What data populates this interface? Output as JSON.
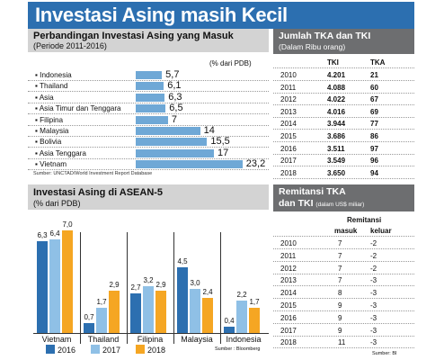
{
  "title": "Investasi Asing masih Kecil",
  "fdi_comparison": {
    "title": "Perbandingan Investasi Asing yang Masuk",
    "subtitle": "(Periode 2011-2016)",
    "unit_note": "(% dari PDB)",
    "source": "Sumber: UNCTAD/World Investment Report Database",
    "rows": [
      {
        "name": "Indonesia",
        "value": 5.7,
        "label": "5,7"
      },
      {
        "name": "Thailand",
        "value": 6.1,
        "label": "6,1"
      },
      {
        "name": "Asia",
        "value": 6.3,
        "label": "6,3"
      },
      {
        "name": "Asia Timur dan Tenggara",
        "value": 6.5,
        "label": "6,5"
      },
      {
        "name": "Filipina",
        "value": 7,
        "label": "7"
      },
      {
        "name": "Malaysia",
        "value": 14,
        "label": "14"
      },
      {
        "name": "Bolivia",
        "value": 15.5,
        "label": "15,5"
      },
      {
        "name": "Asia Tenggara",
        "value": 17,
        "label": "17"
      },
      {
        "name": "Vietnam",
        "value": 23.2,
        "label": "23,2"
      }
    ],
    "bar_color": "#6fa8d6"
  },
  "tka_table": {
    "title": "Jumlah TKA dan TKI",
    "subtitle": "(Dalam Ribu orang)",
    "headers": [
      "",
      "TKI",
      "TKA"
    ],
    "rows": [
      [
        "2010",
        "4.201",
        "21"
      ],
      [
        "2011",
        "4.088",
        "60"
      ],
      [
        "2012",
        "4.022",
        "67"
      ],
      [
        "2013",
        "4.016",
        "69"
      ],
      [
        "2014",
        "3.944",
        "77"
      ],
      [
        "2015",
        "3.686",
        "86"
      ],
      [
        "2016",
        "3.511",
        "97"
      ],
      [
        "2017",
        "3.549",
        "96"
      ],
      [
        "2018",
        "3.650",
        "94"
      ]
    ]
  },
  "chart_data": [
    {
      "type": "bar",
      "orientation": "horizontal",
      "title": "Perbandingan Investasi Asing yang Masuk",
      "subtitle": "(Periode 2011-2016)",
      "unit": "(% dari PDB)",
      "categories": [
        "Indonesia",
        "Thailand",
        "Asia",
        "Asia Timur dan Tenggara",
        "Filipina",
        "Malaysia",
        "Bolivia",
        "Asia Tenggara",
        "Vietnam"
      ],
      "values": [
        5.7,
        6.1,
        6.3,
        6.5,
        7,
        14,
        15.5,
        17,
        23.2
      ],
      "xlim": [
        0,
        25
      ]
    },
    {
      "type": "bar",
      "title": "Investasi Asing di ASEAN-5",
      "subtitle": "(% dari PDB)",
      "categories": [
        "Vietnam",
        "Thailand",
        "Filipina",
        "Malaysia",
        "Indonesia"
      ],
      "series": [
        {
          "name": "2016",
          "values": [
            6.3,
            0.7,
            2.7,
            4.5,
            0.4
          ],
          "labels": [
            "6,3",
            "0,7",
            "2,7",
            "4,5",
            "0,4"
          ],
          "color": "#2c6fb0"
        },
        {
          "name": "2017",
          "values": [
            6.4,
            1.7,
            3.2,
            3.0,
            2.2
          ],
          "labels": [
            "6,4",
            "1,7",
            "3,2",
            "3,0",
            "2,2"
          ],
          "color": "#8fc0e6"
        },
        {
          "name": "2018",
          "values": [
            7.0,
            2.9,
            2.9,
            2.4,
            1.7
          ],
          "labels": [
            "7,0",
            "2,9",
            "2,9",
            "2,4",
            "1,7"
          ],
          "color": "#f5a623"
        }
      ],
      "ylim": [
        0,
        7.5
      ],
      "source": "Sumber : Bloomberg"
    }
  ],
  "remittance_table": {
    "title": "Remitansi TKA",
    "title2": "dan TKI",
    "subtitle": "(dalam US$ miliar)",
    "group_header": "Remitansi",
    "headers": [
      "",
      "masuk",
      "keluar"
    ],
    "rows": [
      [
        "2010",
        "7",
        "-2"
      ],
      [
        "2011",
        "7",
        "-2"
      ],
      [
        "2012",
        "7",
        "-2"
      ],
      [
        "2013",
        "7",
        "-3"
      ],
      [
        "2014",
        "8",
        "-3"
      ],
      [
        "2015",
        "9",
        "-3"
      ],
      [
        "2016",
        "9",
        "-3"
      ],
      [
        "2017",
        "9",
        "-3"
      ],
      [
        "2018",
        "11",
        "-3"
      ]
    ],
    "source": "Sumber: BI"
  }
}
